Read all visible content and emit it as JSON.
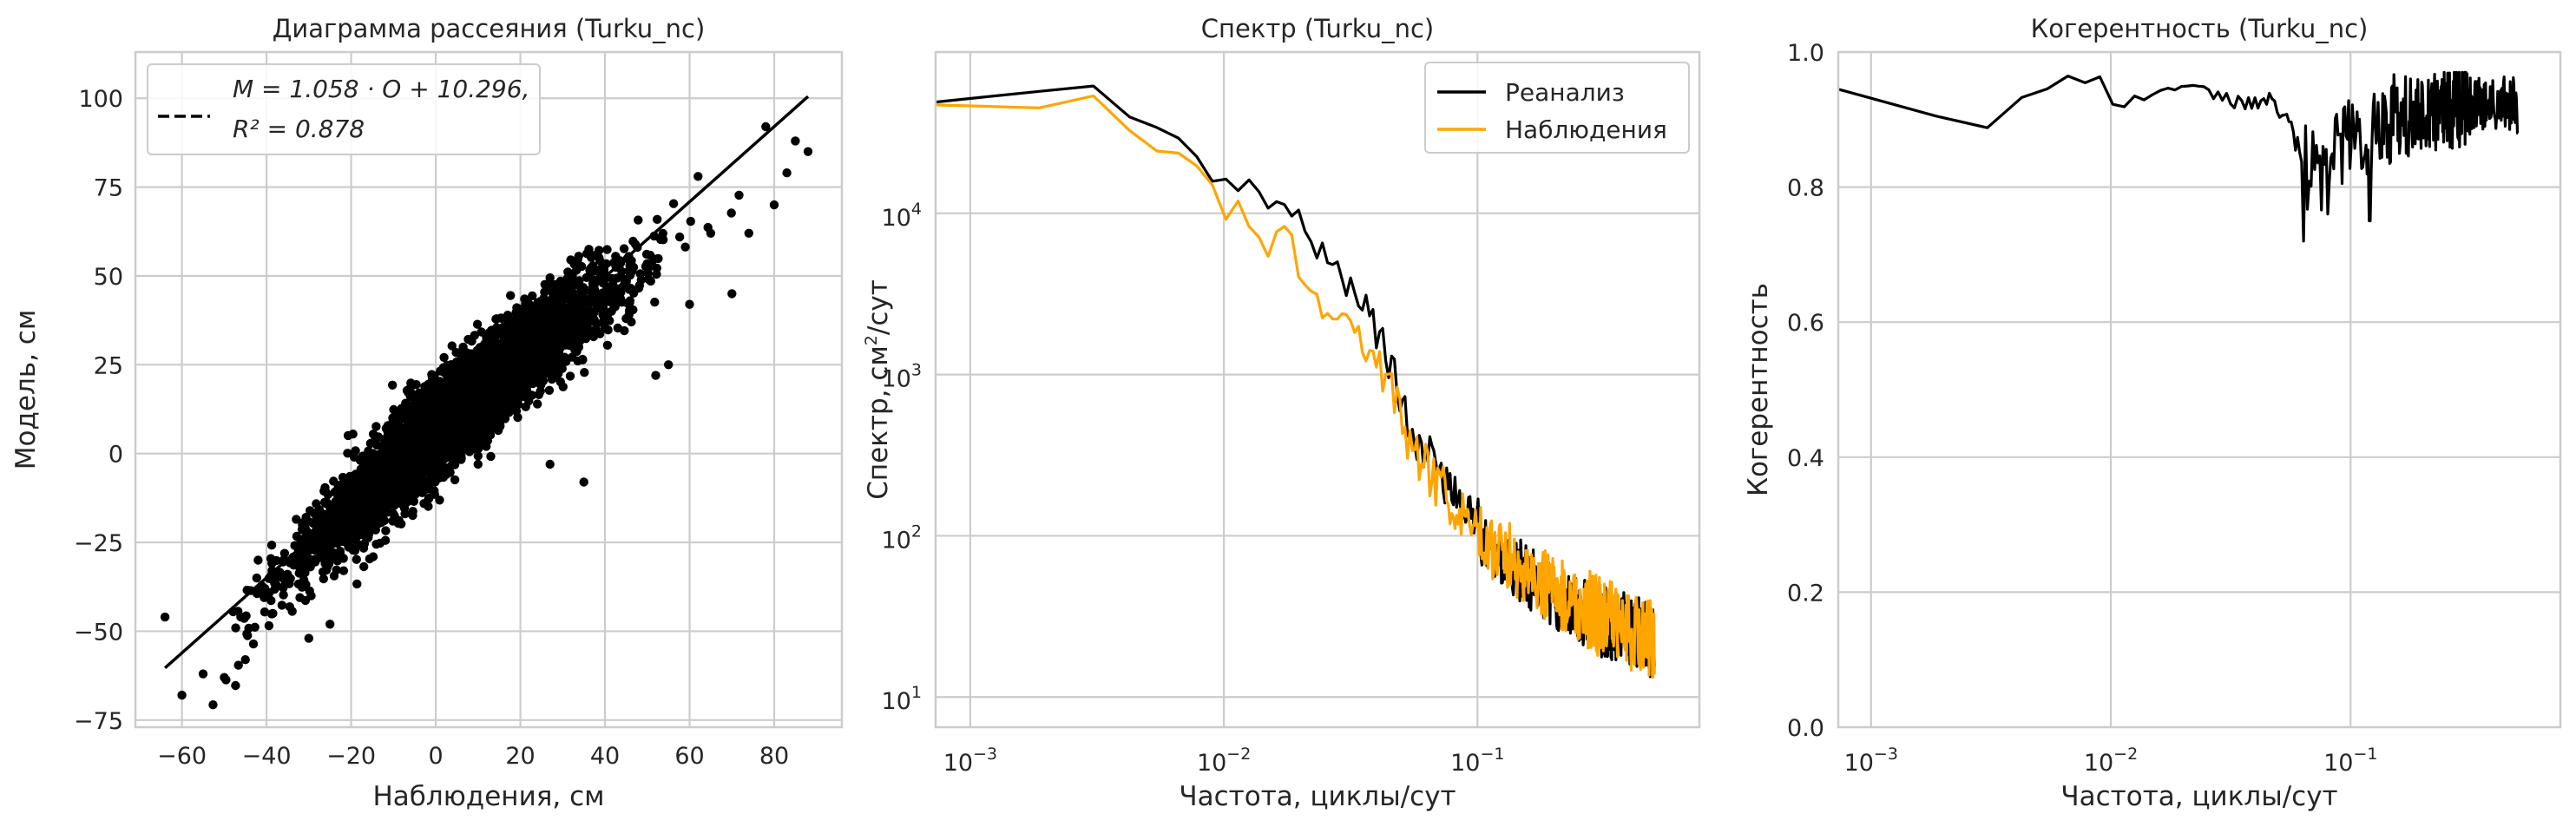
{
  "colors": {
    "grid": "#cccccc",
    "frame": "#cccccc",
    "text": "#262626",
    "reanalysis": "#000000",
    "observations": "#ffa500"
  },
  "chart_data": [
    {
      "type": "scatter",
      "title": "Диаграмма рассеяния (Turku_nc)",
      "xlabel": "Наблюдения, см",
      "ylabel": "Модель, см",
      "xlim": [
        -71,
        96
      ],
      "ylim": [
        -77,
        113
      ],
      "xticks": [
        -60,
        -40,
        -20,
        0,
        20,
        40,
        60,
        80
      ],
      "yticks": [
        -75,
        -50,
        -25,
        0,
        25,
        50,
        75,
        100
      ],
      "xtick_labels": [
        "−60",
        "−40",
        "−20",
        "0",
        "20",
        "40",
        "60",
        "80"
      ],
      "ytick_labels": [
        "−75",
        "−50",
        "−25",
        "0",
        "25",
        "50",
        "75",
        "100"
      ],
      "grid": true,
      "fit": {
        "slope": 1.058,
        "intercept": 10.296,
        "r2": 0.878,
        "x_range": [
          -64,
          88
        ],
        "style": "dashed"
      },
      "legend": {
        "placement": "top-left",
        "line1": "M = 1.058 · O + 10.296,",
        "line2": "R² = 0.878"
      },
      "point_cloud": {
        "n_points": 5200,
        "x_mean": 5,
        "x_sd": 17,
        "resid_sd": 6.3
      },
      "outliers": [
        [
          -64,
          -46
        ],
        [
          -60,
          -68
        ],
        [
          -55,
          -62
        ],
        [
          -50,
          -63
        ],
        [
          -45,
          -58
        ],
        [
          -42,
          -30
        ],
        [
          27,
          -3
        ],
        [
          35,
          -8
        ],
        [
          52,
          22
        ],
        [
          55,
          25
        ],
        [
          70,
          45
        ],
        [
          74,
          62
        ],
        [
          80,
          70
        ],
        [
          83,
          79
        ],
        [
          85,
          88
        ],
        [
          88,
          85
        ],
        [
          78,
          92
        ],
        [
          62,
          78
        ],
        [
          65,
          62
        ],
        [
          45,
          38
        ],
        [
          60,
          42
        ],
        [
          -30,
          -52
        ],
        [
          -25,
          -48
        ],
        [
          10,
          -3
        ]
      ]
    },
    {
      "type": "line",
      "title": "Спектр (Turku_nc)",
      "xlabel": "Частота, циклы/сут",
      "ylabel_base": "Спектр, см",
      "ylabel_sup": "2",
      "ylabel_tail": "/сут",
      "xscale": "log",
      "yscale": "log",
      "xlim": [
        0.00073,
        0.75
      ],
      "ylim": [
        6.5,
        100000
      ],
      "xticks": [
        0.001,
        0.01,
        0.1
      ],
      "yticks": [
        10,
        100,
        1000,
        10000
      ],
      "xtick_base": "10",
      "xtick_exps": [
        "−3",
        "−2",
        "−1"
      ],
      "ytick_base": "10",
      "ytick_exps": [
        "1",
        "2",
        "3",
        "4"
      ],
      "grid": true,
      "legend": {
        "placement": "top-right"
      },
      "series": [
        {
          "name": "Реанализ",
          "color": "#000000",
          "anchors": [
            [
              0.00068,
              49000
            ],
            [
              0.001,
              49000
            ],
            [
              0.002,
              58000
            ],
            [
              0.003,
              63000
            ],
            [
              0.004,
              45000
            ],
            [
              0.005,
              28000
            ],
            [
              0.006,
              36000
            ],
            [
              0.008,
              24000
            ],
            [
              0.01,
              14000
            ],
            [
              0.012,
              16000
            ],
            [
              0.015,
              11000
            ],
            [
              0.018,
              13000
            ],
            [
              0.02,
              8000
            ],
            [
              0.025,
              6000
            ],
            [
              0.03,
              4000
            ],
            [
              0.04,
              2000
            ],
            [
              0.05,
              700
            ],
            [
              0.06,
              350
            ],
            [
              0.07,
              260
            ],
            [
              0.08,
              180
            ],
            [
              0.1,
              110
            ],
            [
              0.15,
              60
            ],
            [
              0.2,
              42
            ],
            [
              0.3,
              30
            ],
            [
              0.4,
              26
            ],
            [
              0.5,
              22
            ]
          ],
          "noise": [
            0.0,
            0.06,
            0.1,
            0.14,
            0.2,
            0.23
          ]
        },
        {
          "name": "Наблюдения",
          "color": "#ffa500",
          "anchors": [
            [
              0.00068,
              47000
            ],
            [
              0.001,
              46000
            ],
            [
              0.002,
              45000
            ],
            [
              0.003,
              55000
            ],
            [
              0.004,
              36000
            ],
            [
              0.005,
              25000
            ],
            [
              0.006,
              32000
            ],
            [
              0.008,
              18000
            ],
            [
              0.01,
              10000
            ],
            [
              0.012,
              11000
            ],
            [
              0.015,
              6000
            ],
            [
              0.018,
              7000
            ],
            [
              0.02,
              5000
            ],
            [
              0.025,
              2500
            ],
            [
              0.03,
              2200
            ],
            [
              0.04,
              1300
            ],
            [
              0.05,
              500
            ],
            [
              0.06,
              280
            ],
            [
              0.07,
              210
            ],
            [
              0.08,
              150
            ],
            [
              0.1,
              100
            ],
            [
              0.15,
              65
            ],
            [
              0.2,
              45
            ],
            [
              0.3,
              32
            ],
            [
              0.4,
              26
            ],
            [
              0.5,
              22
            ]
          ],
          "noise": [
            0.0,
            0.07,
            0.12,
            0.16,
            0.22,
            0.25
          ]
        }
      ]
    },
    {
      "type": "line",
      "title": "Когерентность (Turku_nc)",
      "xlabel": "Частота, циклы/сут",
      "ylabel": "Когерентность",
      "xscale": "log",
      "xlim": [
        0.00073,
        0.75
      ],
      "ylim": [
        0,
        1
      ],
      "xticks": [
        0.001,
        0.01,
        0.1
      ],
      "xtick_base": "10",
      "xtick_exps": [
        "−3",
        "−2",
        "−1"
      ],
      "yticks": [
        0,
        0.2,
        0.4,
        0.6,
        0.8,
        1.0
      ],
      "ytick_labels": [
        "0.0",
        "0.2",
        "0.4",
        "0.6",
        "0.8",
        "1.0"
      ],
      "grid": true,
      "series": [
        {
          "name": "Когерентность",
          "color": "#000000",
          "anchors": [
            [
              0.00068,
              0.945
            ],
            [
              0.0011,
              0.945
            ],
            [
              0.002,
              0.9
            ],
            [
              0.003,
              0.885
            ],
            [
              0.004,
              0.93
            ],
            [
              0.005,
              0.94
            ],
            [
              0.006,
              0.96
            ],
            [
              0.007,
              0.965
            ],
            [
              0.008,
              0.945
            ],
            [
              0.009,
              0.96
            ],
            [
              0.01,
              0.92
            ],
            [
              0.015,
              0.94
            ],
            [
              0.02,
              0.95
            ],
            [
              0.03,
              0.93
            ],
            [
              0.04,
              0.935
            ],
            [
              0.05,
              0.925
            ],
            [
              0.06,
              0.86
            ],
            [
              0.07,
              0.82
            ],
            [
              0.08,
              0.84
            ],
            [
              0.1,
              0.87
            ],
            [
              0.15,
              0.9
            ],
            [
              0.2,
              0.91
            ],
            [
              0.3,
              0.92
            ],
            [
              0.5,
              0.925
            ]
          ],
          "noise": [
            0.0,
            0.01,
            0.015,
            0.03,
            0.07,
            0.06,
            0.04
          ],
          "dips": [
            [
              0.064,
              0.72
            ],
            [
              0.08,
              0.76
            ],
            [
              0.12,
              0.75
            ],
            [
              0.5,
              0.88
            ]
          ]
        }
      ]
    }
  ]
}
